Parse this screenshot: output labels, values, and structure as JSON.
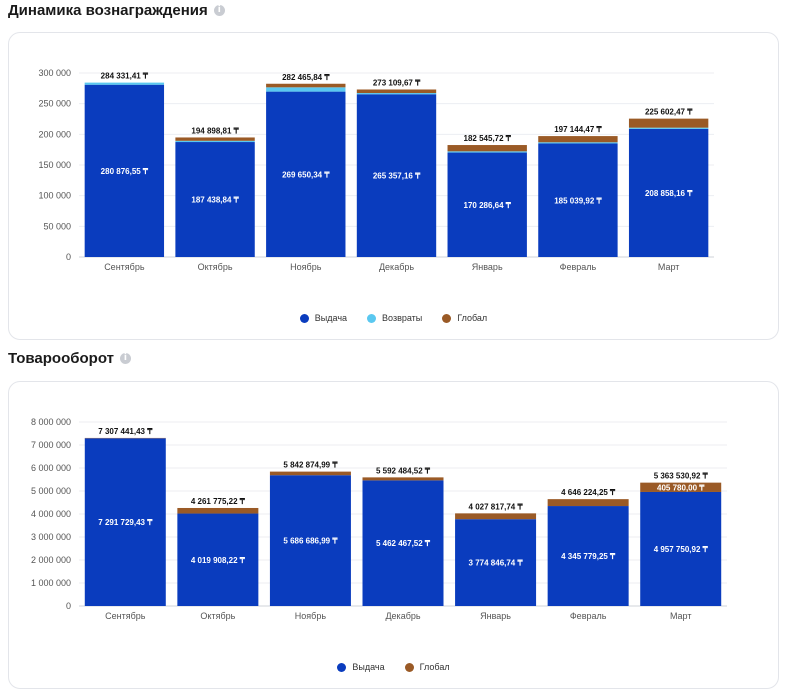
{
  "chart_data": [
    {
      "type": "bar",
      "stacked": true,
      "title": "Динамика вознаграждения",
      "categories": [
        "Сентябрь",
        "Октябрь",
        "Ноябрь",
        "Декабрь",
        "Январь",
        "Февраль",
        "Март"
      ],
      "series": [
        {
          "name": "Выдача",
          "color": "#0a3cbe",
          "values": [
            280876.55,
            187438.84,
            269650.34,
            265357.16,
            170286.64,
            185039.92,
            208858.16
          ]
        },
        {
          "name": "Возвраты",
          "color": "#5ac8f0",
          "values": [
            3454.86,
            2000,
            7000,
            2000,
            2000,
            2000,
            2000
          ]
        },
        {
          "name": "Глобал",
          "color": "#9a5a26",
          "values": [
            0,
            5459.97,
            5815.5,
            5752.51,
            10259.08,
            10104.55,
            14744.31
          ]
        }
      ],
      "total_labels": [
        "284 331,41 ₸",
        "194 898,81 ₸",
        "282 465,84 ₸",
        "273 109,67 ₸",
        "182 545,72 ₸",
        "197 144,47 ₸",
        "225 602,47 ₸"
      ],
      "inner_labels": [
        "280 876,55 ₸",
        "187 438,84 ₸",
        "269 650,34 ₸",
        "265 357,16 ₸",
        "170 286,64 ₸",
        "185 039,92 ₸",
        "208 858,16 ₸"
      ],
      "ylim": [
        0,
        300000
      ],
      "yticks": [
        0,
        50000,
        100000,
        150000,
        200000,
        250000,
        300000
      ],
      "ytick_labels": [
        "0",
        "50 000",
        "100 000",
        "150 000",
        "200 000",
        "250 000",
        "300 000"
      ],
      "grid": true,
      "legend_position": "bottom-center"
    },
    {
      "type": "bar",
      "stacked": true,
      "title": "Товарооборот",
      "categories": [
        "Сентябрь",
        "Октябрь",
        "Ноябрь",
        "Декабрь",
        "Январь",
        "Февраль",
        "Март"
      ],
      "series": [
        {
          "name": "Выдача",
          "color": "#0a3cbe",
          "values": [
            7291729.43,
            4019908.22,
            5686686.99,
            5462467.52,
            3774846.74,
            4345779.25,
            4957750.92
          ]
        },
        {
          "name": "Глобал",
          "color": "#9a5a26",
          "values": [
            15712.0,
            241867.0,
            156188.0,
            130017.0,
            252971.0,
            300445.0,
            405780.0
          ]
        }
      ],
      "total_labels": [
        "7 307 441,43 ₸",
        "4 261 775,22 ₸",
        "5 842 874,99 ₸",
        "5 592 484,52 ₸",
        "4 027 817,74 ₸",
        "4 646 224,25 ₸",
        "5 363 530,92 ₸"
      ],
      "inner_labels": [
        "7 291 729,43 ₸",
        "4 019 908,22 ₸",
        "5 686 686,99 ₸",
        "5 462 467,52 ₸",
        "3 774 846,74 ₸",
        "4 345 779,25 ₸",
        "4 957 750,92 ₸"
      ],
      "extra_labels": [
        {
          "index": 6,
          "text": "405 780,00 ₸"
        }
      ],
      "ylim": [
        0,
        8000000
      ],
      "yticks": [
        0,
        1000000,
        2000000,
        3000000,
        4000000,
        5000000,
        6000000,
        7000000,
        8000000
      ],
      "ytick_labels": [
        "0",
        "1 000 000",
        "2 000 000",
        "3 000 000",
        "4 000 000",
        "5 000 000",
        "6 000 000",
        "7 000 000",
        "8 000 000"
      ],
      "grid": true,
      "legend_position": "bottom-center"
    }
  ],
  "sections": {
    "reward_title": "Динамика вознаграждения",
    "turnover_title": "Товарооборот",
    "info_icon_glyph": "i"
  }
}
